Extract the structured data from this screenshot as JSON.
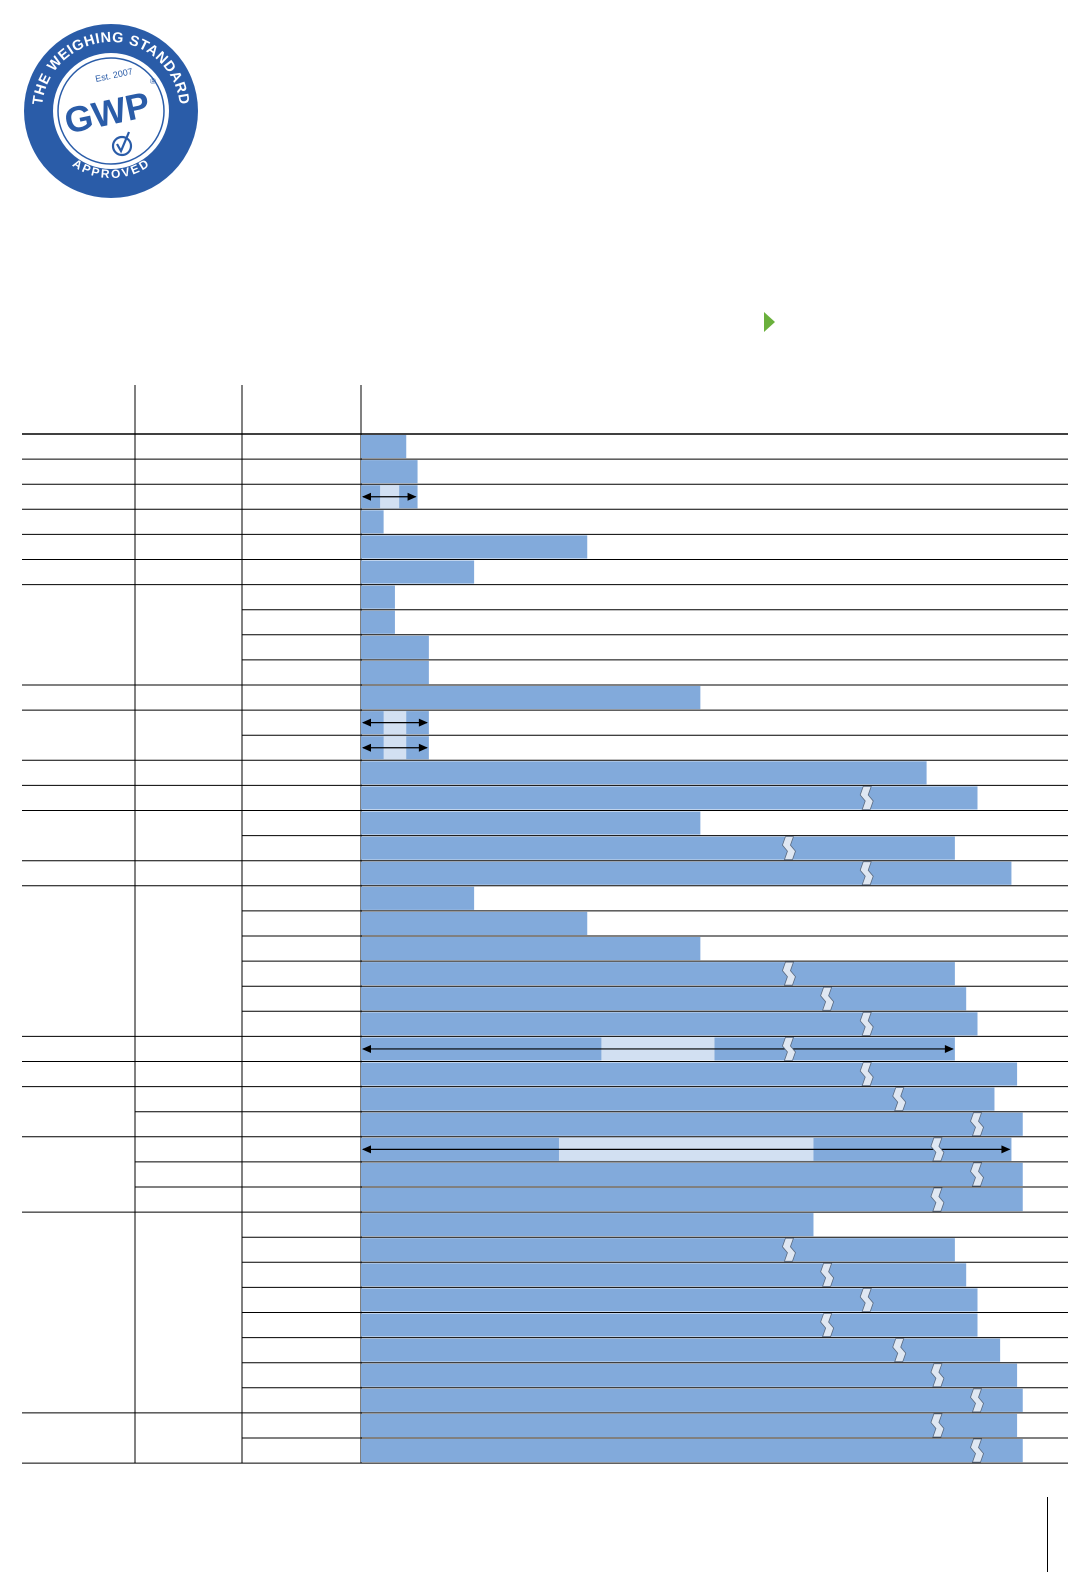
{
  "seal": {
    "ring_top_text": "THE WEIGHING STANDARD",
    "ring_bottom_text": "APPROVED",
    "established": "Est. 2007",
    "brand": "GWP",
    "registered_mark": "®"
  },
  "colors": {
    "seal_blue": "#2a5ca8",
    "bar_fill": "#82aadb",
    "bar_light": "#d2e0f2",
    "marker_green": "#6ab03c",
    "rule": "#000000"
  },
  "bars": [
    {
      "style": "solid",
      "value": 0.064
    },
    {
      "style": "solid",
      "value": 0.08
    },
    {
      "style": "range",
      "value": 0.08,
      "mid": [
        0.027,
        0.054
      ]
    },
    {
      "style": "solid",
      "value": 0.032
    },
    {
      "style": "solid",
      "value": 0.32
    },
    {
      "style": "solid",
      "value": 0.16
    },
    {
      "style": "solid",
      "value": 0.048
    },
    {
      "style": "solid",
      "value": 0.048
    },
    {
      "style": "solid",
      "value": 0.096
    },
    {
      "style": "solid",
      "value": 0.096
    },
    {
      "style": "solid",
      "value": 0.48
    },
    {
      "style": "range",
      "value": 0.096,
      "mid": [
        0.032,
        0.064
      ]
    },
    {
      "style": "range",
      "value": 0.096,
      "mid": [
        0.032,
        0.064
      ]
    },
    {
      "style": "solid",
      "value": 0.8
    },
    {
      "style": "broken",
      "value": 0.872,
      "brk": 0.716
    },
    {
      "style": "solid",
      "value": 0.48
    },
    {
      "style": "broken",
      "value": 0.84,
      "brk": 0.606
    },
    {
      "style": "broken",
      "value": 0.92,
      "brk": 0.716
    },
    {
      "style": "solid",
      "value": 0.16
    },
    {
      "style": "solid",
      "value": 0.32
    },
    {
      "style": "solid",
      "value": 0.48
    },
    {
      "style": "broken",
      "value": 0.84,
      "brk": 0.606
    },
    {
      "style": "broken",
      "value": 0.856,
      "brk": 0.66
    },
    {
      "style": "broken",
      "value": 0.872,
      "brk": 0.716
    },
    {
      "style": "rangeBroken",
      "value": 0.84,
      "brk": 0.606,
      "mid": [
        0.34,
        0.5
      ]
    },
    {
      "style": "broken",
      "value": 0.928,
      "brk": 0.716
    },
    {
      "style": "broken",
      "value": 0.896,
      "brk": 0.762
    },
    {
      "style": "broken",
      "value": 0.936,
      "brk": 0.872
    },
    {
      "style": "rangeBroken",
      "value": 0.92,
      "brk": 0.816,
      "mid": [
        0.28,
        0.64
      ]
    },
    {
      "style": "broken",
      "value": 0.936,
      "brk": 0.872
    },
    {
      "style": "broken",
      "value": 0.936,
      "brk": 0.816
    },
    {
      "style": "solid",
      "value": 0.64
    },
    {
      "style": "broken",
      "value": 0.84,
      "brk": 0.606
    },
    {
      "style": "broken",
      "value": 0.856,
      "brk": 0.66
    },
    {
      "style": "broken",
      "value": 0.872,
      "brk": 0.716
    },
    {
      "style": "broken",
      "value": 0.872,
      "brk": 0.66
    },
    {
      "style": "broken",
      "value": 0.904,
      "brk": 0.762
    },
    {
      "style": "broken",
      "value": 0.928,
      "brk": 0.816
    },
    {
      "style": "broken",
      "value": 0.936,
      "brk": 0.872
    },
    {
      "style": "broken",
      "value": 0.928,
      "brk": 0.816
    },
    {
      "style": "broken",
      "value": 0.936,
      "brk": 0.872
    }
  ]
}
